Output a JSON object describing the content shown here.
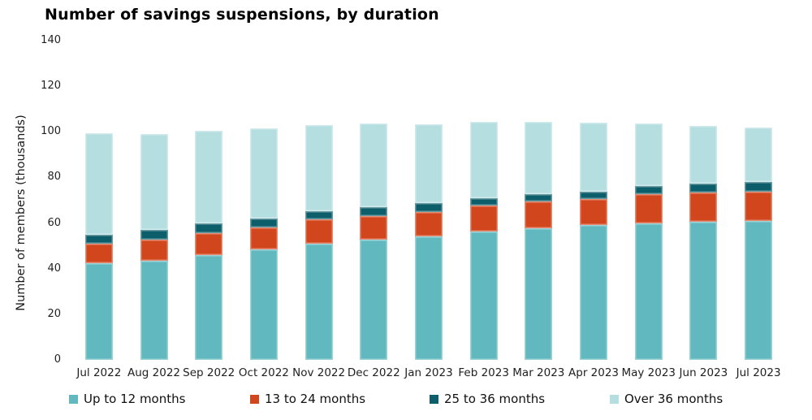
{
  "title": "Number of savings suspensions, by duration",
  "y_axis": {
    "label": "Number of members (thousands)",
    "ticks": [
      0,
      20,
      40,
      60,
      80,
      100,
      120,
      140
    ]
  },
  "chart_data": {
    "type": "bar",
    "stacked": true,
    "title": "Number of savings suspensions, by duration",
    "xlabel": "",
    "ylabel": "Number of members (thousands)",
    "ylim": [
      0,
      140
    ],
    "grid": false,
    "legend_position": "bottom",
    "categories": [
      "Jul 2022",
      "Aug 2022",
      "Sep 2022",
      "Oct 2022",
      "Nov 2022",
      "Dec 2022",
      "Jan 2023",
      "Feb 2023",
      "Mar 2023",
      "Apr 2023",
      "May 2023",
      "Jun 2023",
      "Jul 2023"
    ],
    "series": [
      {
        "name": "Up to 12 months",
        "color": "#61B8BE",
        "values": [
          42.5,
          43.6,
          45.8,
          48.4,
          51.1,
          52.9,
          54.1,
          56.2,
          57.6,
          59.0,
          60.0,
          60.6,
          61.0
        ]
      },
      {
        "name": "13 to 24 months",
        "color": "#D2461E",
        "values": [
          8.6,
          9.3,
          9.8,
          9.8,
          10.4,
          10.3,
          10.6,
          11.5,
          11.9,
          11.7,
          12.8,
          12.8,
          12.7
        ]
      },
      {
        "name": "25 to 36 months",
        "color": "#0D5E6B",
        "values": [
          3.9,
          4.1,
          4.2,
          3.8,
          3.8,
          3.9,
          3.9,
          3.3,
          3.3,
          3.2,
          3.6,
          3.8,
          4.3
        ]
      },
      {
        "name": "Over 36 months",
        "color": "#B5DEE1",
        "values": [
          44.4,
          42.2,
          40.6,
          39.6,
          37.8,
          36.5,
          34.7,
          33.4,
          31.6,
          30.0,
          27.3,
          25.4,
          23.9
        ]
      }
    ]
  },
  "legend": {
    "items": [
      "Up to 12 months",
      "13 to 24 months",
      "25 to 36 months",
      "Over 36 months"
    ]
  }
}
